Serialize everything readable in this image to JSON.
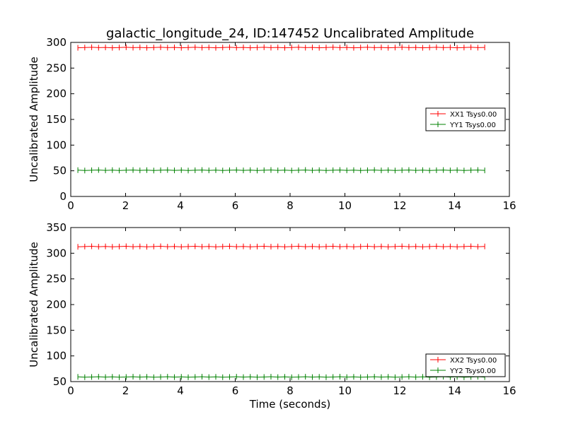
{
  "chart_data": [
    {
      "type": "line",
      "title": "galactic_longitude_24, ID:147452 Uncalibrated Amplitude",
      "xlabel": "",
      "ylabel": "Uncalibrated Amplitude",
      "xlim": [
        0,
        16
      ],
      "ylim": [
        0,
        300
      ],
      "xticks": [
        0,
        2,
        4,
        6,
        8,
        10,
        12,
        14,
        16
      ],
      "yticks": [
        0,
        50,
        100,
        150,
        200,
        250,
        300
      ],
      "x_range": [
        0.26,
        15.1
      ],
      "n_points": 60,
      "legend_position": "center-right",
      "series": [
        {
          "name": "XX1 Tsys0.00",
          "color": "#ff0000",
          "value": 290
        },
        {
          "name": "YY1 Tsys0.00",
          "color": "#008000",
          "value": 51
        }
      ]
    },
    {
      "type": "line",
      "title": "",
      "xlabel": "Time (seconds)",
      "ylabel": "Uncalibrated Amplitude",
      "xlim": [
        0,
        16
      ],
      "ylim": [
        50,
        350
      ],
      "xticks": [
        0,
        2,
        4,
        6,
        8,
        10,
        12,
        14,
        16
      ],
      "yticks": [
        50,
        100,
        150,
        200,
        250,
        300,
        350
      ],
      "x_range": [
        0.26,
        15.1
      ],
      "n_points": 60,
      "legend_position": "lower-right",
      "series": [
        {
          "name": "XX2 Tsys0.00",
          "color": "#ff0000",
          "value": 313
        },
        {
          "name": "YY2 Tsys0.00",
          "color": "#008000",
          "value": 59
        }
      ]
    }
  ]
}
